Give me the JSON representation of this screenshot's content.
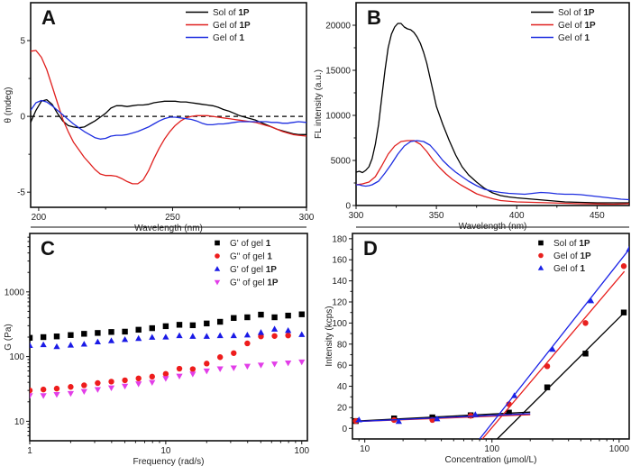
{
  "chart_data": [
    {
      "panel": "A",
      "type": "line",
      "xlabel": "Wavelength (nm)",
      "ylabel": "θ (mdeg)",
      "xlim": [
        197,
        300
      ],
      "ylim": [
        -6,
        7.5
      ],
      "xticks": [
        200,
        250,
        300
      ],
      "yticks": [
        -5,
        0,
        5
      ],
      "reference_line": {
        "y": 0,
        "style": "dashed",
        "color": "#000000"
      },
      "legend_position": "top-right",
      "series": [
        {
          "name": "Sol of ",
          "name_bold": "1P",
          "color": "#000000",
          "x": [
            197,
            199,
            201,
            203,
            205,
            207,
            209,
            211,
            213,
            215,
            217,
            219,
            221,
            223,
            225,
            227,
            229,
            231,
            233,
            235,
            237,
            239,
            241,
            243,
            245,
            247,
            249,
            251,
            253,
            255,
            257,
            259,
            261,
            263,
            265,
            267,
            269,
            271,
            273,
            275,
            277,
            279,
            281,
            283,
            285,
            287,
            289,
            291,
            293,
            295,
            297,
            300
          ],
          "y": [
            -0.4,
            0.4,
            1.0,
            1.1,
            0.8,
            0.2,
            -0.3,
            -0.6,
            -0.7,
            -0.75,
            -0.7,
            -0.5,
            -0.3,
            -0.05,
            0.2,
            0.55,
            0.7,
            0.7,
            0.65,
            0.7,
            0.75,
            0.75,
            0.8,
            0.9,
            0.95,
            1.0,
            1.0,
            1.0,
            0.95,
            0.95,
            0.9,
            0.85,
            0.8,
            0.75,
            0.7,
            0.6,
            0.45,
            0.35,
            0.2,
            0.05,
            -0.05,
            -0.15,
            -0.25,
            -0.4,
            -0.55,
            -0.7,
            -0.85,
            -0.95,
            -1.05,
            -1.15,
            -1.2,
            -1.2
          ]
        },
        {
          "name": "Gel of ",
          "name_bold": "1P",
          "color": "#e0201e",
          "x": [
            197,
            199,
            201,
            203,
            205,
            207,
            209,
            211,
            213,
            215,
            217,
            219,
            221,
            223,
            225,
            227,
            229,
            231,
            233,
            235,
            237,
            239,
            241,
            243,
            245,
            247,
            249,
            251,
            253,
            255,
            257,
            259,
            261,
            263,
            265,
            267,
            269,
            271,
            273,
            275,
            277,
            279,
            281,
            283,
            285,
            287,
            289,
            291,
            293,
            295,
            297,
            300
          ],
          "y": [
            4.3,
            4.35,
            3.9,
            3.1,
            2.0,
            0.9,
            -0.2,
            -1.0,
            -1.7,
            -2.2,
            -2.7,
            -3.1,
            -3.5,
            -3.8,
            -3.9,
            -3.9,
            -3.95,
            -4.1,
            -4.3,
            -4.45,
            -4.45,
            -4.2,
            -3.6,
            -2.8,
            -2.1,
            -1.5,
            -1.0,
            -0.6,
            -0.3,
            -0.1,
            0.0,
            0.05,
            0.05,
            0.05,
            0.0,
            -0.05,
            -0.1,
            -0.15,
            -0.2,
            -0.25,
            -0.3,
            -0.35,
            -0.4,
            -0.5,
            -0.6,
            -0.7,
            -0.85,
            -1.0,
            -1.1,
            -1.2,
            -1.25,
            -1.3
          ]
        },
        {
          "name": "Gel of ",
          "name_bold": "1",
          "color": "#1e2ee0",
          "x": [
            197,
            199,
            201,
            203,
            205,
            207,
            209,
            211,
            213,
            215,
            217,
            219,
            221,
            223,
            225,
            227,
            229,
            231,
            233,
            235,
            237,
            239,
            241,
            243,
            245,
            247,
            249,
            251,
            253,
            255,
            257,
            259,
            261,
            263,
            265,
            267,
            269,
            271,
            273,
            275,
            277,
            279,
            281,
            283,
            285,
            287,
            289,
            291,
            293,
            295,
            297,
            300
          ],
          "y": [
            0.4,
            0.9,
            1.05,
            0.95,
            0.7,
            0.4,
            0.1,
            -0.2,
            -0.5,
            -0.75,
            -1.0,
            -1.2,
            -1.4,
            -1.5,
            -1.45,
            -1.3,
            -1.25,
            -1.25,
            -1.2,
            -1.1,
            -1.0,
            -0.85,
            -0.7,
            -0.5,
            -0.3,
            -0.15,
            -0.05,
            -0.05,
            -0.1,
            -0.15,
            -0.2,
            -0.3,
            -0.45,
            -0.55,
            -0.55,
            -0.5,
            -0.5,
            -0.45,
            -0.4,
            -0.35,
            -0.35,
            -0.35,
            -0.35,
            -0.35,
            -0.35,
            -0.4,
            -0.4,
            -0.45,
            -0.45,
            -0.4,
            -0.35,
            -0.4
          ]
        }
      ]
    },
    {
      "panel": "B",
      "type": "line",
      "xlabel": "Wavelength (nm)",
      "ylabel": "FL intensity (a.u.)",
      "xlim": [
        300,
        470
      ],
      "ylim": [
        0,
        22500
      ],
      "xticks": [
        300,
        350,
        400,
        450
      ],
      "yticks": [
        0,
        5000,
        10000,
        15000,
        20000
      ],
      "legend_position": "top-right",
      "series": [
        {
          "name": "Sol of ",
          "name_bold": "1P",
          "color": "#000000",
          "x": [
            300,
            302,
            304,
            306,
            308,
            310,
            312,
            314,
            316,
            318,
            320,
            322,
            324,
            326,
            328,
            330,
            332,
            334,
            336,
            338,
            340,
            342,
            344,
            346,
            348,
            350,
            354,
            358,
            362,
            366,
            370,
            375,
            380,
            385,
            390,
            395,
            400,
            410,
            420,
            430,
            440,
            450,
            460,
            470
          ],
          "y": [
            3700,
            3800,
            3650,
            3900,
            4300,
            5200,
            6800,
            9000,
            12000,
            15000,
            17500,
            19000,
            19800,
            20200,
            20200,
            19800,
            19600,
            19500,
            19200,
            18700,
            18000,
            17000,
            15800,
            14200,
            12600,
            11000,
            9000,
            7200,
            5600,
            4300,
            3400,
            2600,
            1900,
            1400,
            1100,
            950,
            850,
            700,
            550,
            400,
            350,
            300,
            300,
            300
          ]
        },
        {
          "name": "Gel of ",
          "name_bold": "1P",
          "color": "#e0201e",
          "x": [
            300,
            304,
            308,
            312,
            316,
            320,
            324,
            328,
            332,
            336,
            340,
            344,
            348,
            352,
            356,
            360,
            365,
            370,
            375,
            380,
            385,
            390,
            400,
            410,
            420,
            430,
            440,
            450,
            460,
            470
          ],
          "y": [
            2300,
            2400,
            2600,
            3200,
            4400,
            5700,
            6600,
            7100,
            7200,
            7200,
            6800,
            6000,
            5000,
            4200,
            3500,
            2900,
            2300,
            1800,
            1300,
            1000,
            750,
            550,
            400,
            350,
            300,
            250,
            200,
            180,
            150,
            200
          ]
        },
        {
          "name": "Gel of ",
          "name_bold": "1",
          "color": "#1e2ee0",
          "x": [
            300,
            302,
            304,
            306,
            308,
            310,
            314,
            318,
            322,
            326,
            330,
            334,
            338,
            342,
            346,
            350,
            354,
            358,
            362,
            366,
            370,
            375,
            380,
            385,
            390,
            395,
            400,
            405,
            410,
            415,
            420,
            425,
            430,
            435,
            440,
            445,
            450,
            455,
            460,
            465,
            470
          ],
          "y": [
            2300,
            2300,
            2200,
            2150,
            2200,
            2300,
            2700,
            3600,
            4600,
            5700,
            6600,
            7100,
            7200,
            7100,
            6700,
            5900,
            5000,
            4300,
            3700,
            3200,
            2700,
            2200,
            1800,
            1600,
            1450,
            1350,
            1300,
            1250,
            1350,
            1450,
            1400,
            1300,
            1250,
            1250,
            1200,
            1100,
            1000,
            900,
            800,
            700,
            650
          ]
        }
      ]
    },
    {
      "panel": "C",
      "type": "scatter",
      "xlabel": "Frequency (rad/s)",
      "ylabel": "G (Pa)",
      "xscale": "log",
      "yscale": "log",
      "xlim": [
        1,
        110
      ],
      "ylim": [
        5,
        8000
      ],
      "xticks": [
        1,
        10,
        100
      ],
      "yticks": [
        10,
        100,
        1000
      ],
      "legend_position": "top-right",
      "x": [
        1,
        1.26,
        1.58,
        2.0,
        2.51,
        3.16,
        3.98,
        5.01,
        6.31,
        7.94,
        10,
        12.6,
        15.8,
        20,
        25.1,
        31.6,
        39.8,
        50.1,
        63.1,
        79.4,
        100
      ],
      "series": [
        {
          "name": "G' of gel ",
          "name_bold": "1",
          "color": "#000000",
          "marker": "square",
          "values": [
            195,
            200,
            205,
            215,
            225,
            232,
            240,
            243,
            260,
            275,
            295,
            310,
            305,
            325,
            345,
            395,
            405,
            445,
            405,
            430,
            450
          ]
        },
        {
          "name": "G\" of gel ",
          "name_bold": "1",
          "color": "#ee1c1c",
          "marker": "circle",
          "values": [
            30,
            31,
            32,
            34,
            36,
            39,
            41,
            43,
            46,
            49,
            54,
            65,
            64,
            78,
            98,
            113,
            160,
            205,
            208,
            212,
            null
          ]
        },
        {
          "name": "G' of gel ",
          "name_bold": "1P",
          "color": "#1a1ae6",
          "marker": "triangle-up",
          "values": [
            148,
            152,
            142,
            150,
            155,
            168,
            175,
            183,
            190,
            198,
            200,
            210,
            205,
            205,
            210,
            210,
            215,
            235,
            265,
            252,
            218
          ]
        },
        {
          "name": "G\" of gel ",
          "name_bold": "1P",
          "color": "#e23ee8",
          "marker": "triangle-down",
          "values": [
            25,
            25,
            26,
            27,
            29,
            31,
            33,
            35,
            38,
            40,
            46,
            50,
            54,
            60,
            65,
            67,
            71,
            74,
            77,
            80,
            83
          ]
        }
      ]
    },
    {
      "panel": "D",
      "type": "scatter",
      "xlabel": "Concentration (μmol/L)",
      "ylabel": "Intensity (kcps)",
      "xscale": "log",
      "xlim": [
        8,
        1200
      ],
      "ylim": [
        -10,
        185
      ],
      "xticks": [
        10,
        100,
        1000
      ],
      "yticks": [
        0,
        20,
        40,
        60,
        80,
        100,
        120,
        140,
        160,
        180
      ],
      "legend_position": "top-right",
      "series": [
        {
          "name": "Sol of ",
          "name_bold": "1P",
          "color": "#000000",
          "marker": "square",
          "x": [
            8.5,
            17,
            34,
            68,
            136,
            272,
            544,
            1088
          ],
          "values": [
            7,
            9.5,
            10.5,
            12.5,
            15,
            39,
            71,
            110
          ],
          "fit_low": {
            "x": [
              8.5,
              200
            ],
            "y": [
              7,
              15.5
            ]
          },
          "fit_high": {
            "x": [
              110,
              1100
            ],
            "y": [
              -10,
              110
            ]
          }
        },
        {
          "name": "Gel of ",
          "name_bold": "1P",
          "color": "#e8201e",
          "marker": "circle",
          "x": [
            8.5,
            17,
            34,
            68,
            136,
            272,
            544,
            1088
          ],
          "values": [
            7,
            8,
            8,
            12,
            23,
            59,
            100,
            154
          ],
          "fit_low": {
            "x": [
              8.5,
              200
            ],
            "y": [
              6.5,
              13
            ]
          },
          "fit_high": {
            "x": [
              84,
              1100
            ],
            "y": [
              -10,
              149
            ]
          }
        },
        {
          "name": "Gel of ",
          "name_bold": "1",
          "color": "#1a22e6",
          "marker": "triangle-up",
          "x": [
            9,
            18.5,
            37,
            74,
            150,
            300,
            600,
            1200
          ],
          "values": [
            8,
            6.5,
            9,
            13,
            31,
            75,
            121,
            170
          ],
          "fit_low": {
            "x": [
              8.5,
              200
            ],
            "y": [
              6.5,
              14
            ]
          },
          "fit_high": {
            "x": [
              80,
              1200
            ],
            "y": [
              -10,
              170
            ]
          }
        }
      ]
    }
  ]
}
